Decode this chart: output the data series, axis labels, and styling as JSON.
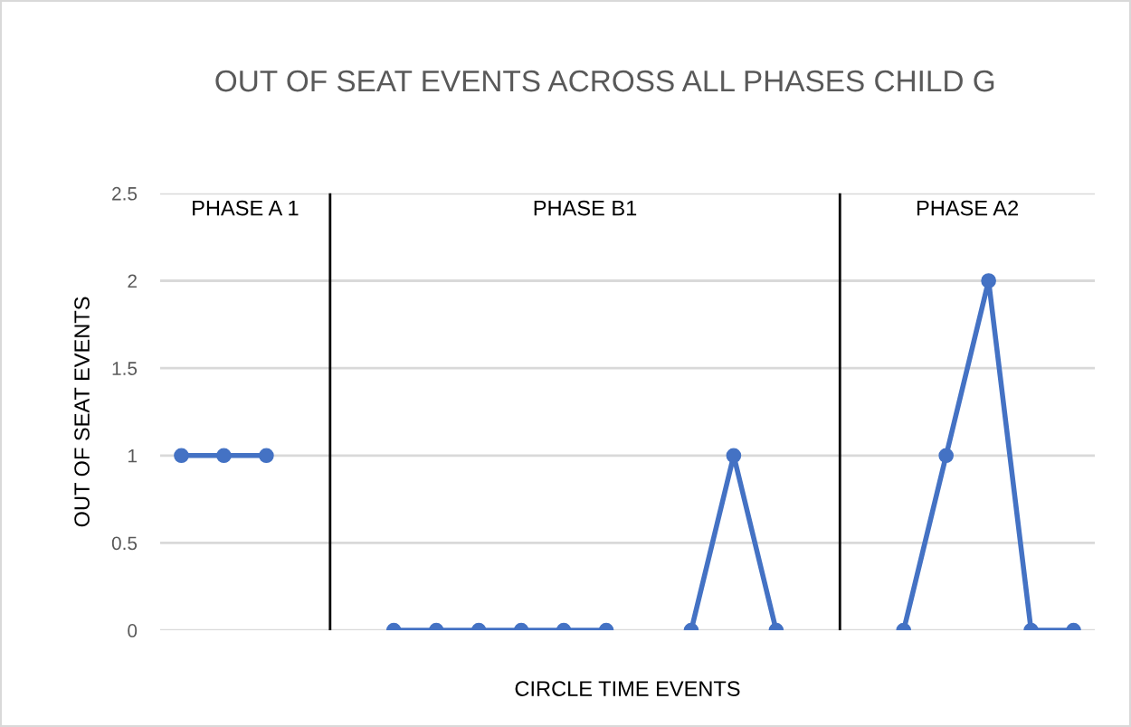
{
  "chart_data": {
    "type": "line",
    "title": "OUT OF SEAT EVENTS ACROSS ALL PHASES CHILD G",
    "xlabel": "CIRCLE TIME EVENTS",
    "ylabel": "OUT OF SEAT EVENTS",
    "categories": [
      null,
      null,
      null,
      null,
      null,
      null,
      null,
      null,
      null,
      null,
      null,
      null,
      null,
      null,
      null,
      null,
      null,
      null,
      null,
      null,
      null,
      null
    ],
    "series": [
      {
        "color": "#4472c4",
        "values": [
          1,
          1,
          1,
          null,
          null,
          0,
          0,
          0,
          0,
          0,
          0,
          null,
          0,
          1,
          0,
          null,
          null,
          0,
          1,
          2,
          0,
          0
        ]
      }
    ],
    "ylim": [
      0,
      2.5
    ],
    "yticks": [
      0,
      0.5,
      1,
      1.5,
      2,
      2.5
    ],
    "grid": "y",
    "marker": "circle",
    "line_style": "solid",
    "tick_labels": "y",
    "annotations": [
      "PHASE A 1",
      "PHASE B1",
      "PHASE A2"
    ]
  }
}
